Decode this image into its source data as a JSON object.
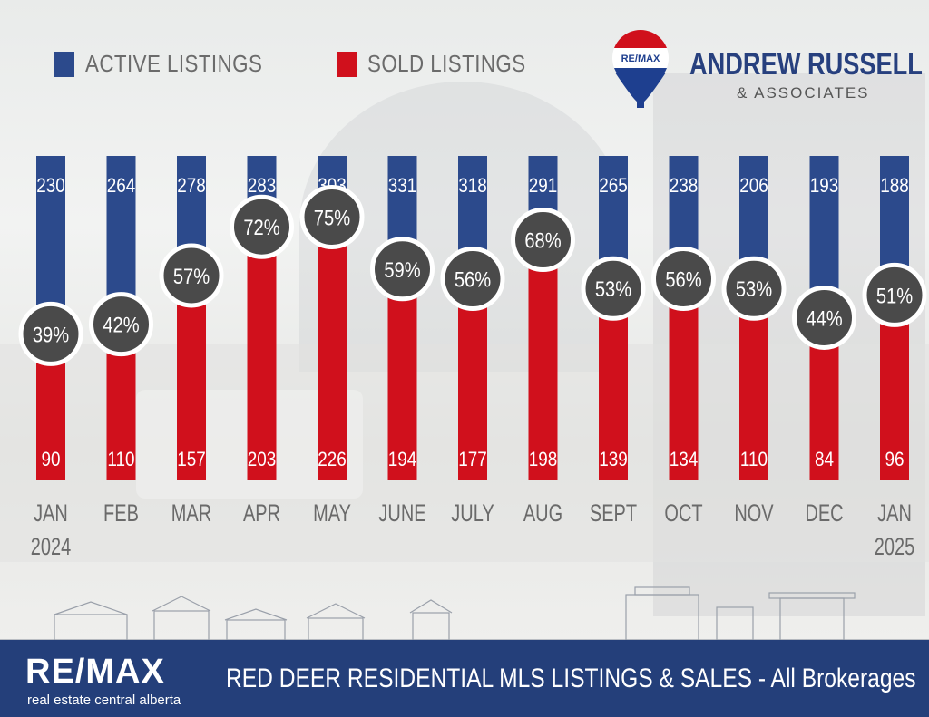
{
  "legend": {
    "active_label": "ACTIVE LISTINGS",
    "sold_label": "SOLD LISTINGS"
  },
  "brand": {
    "balloon_text": "RE/MAX",
    "name": "ANDREW RUSSELL",
    "sub": "& ASSOCIATES"
  },
  "footer": {
    "logo": "RE/MAX",
    "tagline": "real estate central alberta",
    "title": "RED DEER RESIDENTIAL MLS LISTINGS & SALES - All Brokerages"
  },
  "colors": {
    "active": "#2c4a8c",
    "sold": "#d0101c",
    "pct_circle": "#4a4a4a",
    "footer": "#243f7a"
  },
  "chart_data": {
    "type": "bar",
    "stacked": true,
    "title": "RED DEER RESIDENTIAL MLS LISTINGS & SALES - All Brokerages",
    "categories": [
      {
        "line1": "JAN",
        "line2": "2024"
      },
      {
        "line1": "FEB",
        "line2": ""
      },
      {
        "line1": "MAR",
        "line2": ""
      },
      {
        "line1": "APR",
        "line2": ""
      },
      {
        "line1": "MAY",
        "line2": ""
      },
      {
        "line1": "JUNE",
        "line2": ""
      },
      {
        "line1": "JULY",
        "line2": ""
      },
      {
        "line1": "AUG",
        "line2": ""
      },
      {
        "line1": "SEPT",
        "line2": ""
      },
      {
        "line1": "OCT",
        "line2": ""
      },
      {
        "line1": "NOV",
        "line2": ""
      },
      {
        "line1": "DEC",
        "line2": ""
      },
      {
        "line1": "JAN",
        "line2": "2025"
      }
    ],
    "series": [
      {
        "name": "ACTIVE LISTINGS",
        "values": [
          230,
          264,
          278,
          283,
          303,
          331,
          318,
          291,
          265,
          238,
          206,
          193,
          188
        ]
      },
      {
        "name": "SOLD LISTINGS",
        "values": [
          90,
          110,
          157,
          203,
          226,
          194,
          177,
          198,
          139,
          134,
          110,
          84,
          96
        ]
      }
    ],
    "sales_to_listing_ratio": [
      "39%",
      "42%",
      "57%",
      "72%",
      "75%",
      "59%",
      "56%",
      "68%",
      "53%",
      "56%",
      "53%",
      "44%",
      "51%"
    ],
    "ratio_values": [
      0.39,
      0.42,
      0.57,
      0.72,
      0.75,
      0.59,
      0.56,
      0.68,
      0.53,
      0.56,
      0.53,
      0.44,
      0.51
    ],
    "legend_position": "top-left"
  }
}
